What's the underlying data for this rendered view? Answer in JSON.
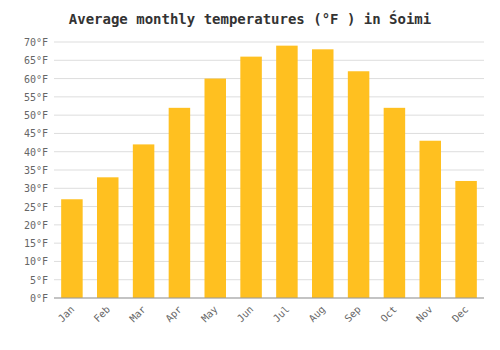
{
  "chart_data": {
    "type": "bar",
    "title": "Average monthly temperatures (°F ) in Śoimi",
    "categories": [
      "Jan",
      "Feb",
      "Mar",
      "Apr",
      "May",
      "Jun",
      "Jul",
      "Aug",
      "Sep",
      "Oct",
      "Nov",
      "Dec"
    ],
    "values": [
      27,
      33,
      42,
      52,
      60,
      66,
      69,
      68,
      62,
      52,
      43,
      32
    ],
    "color": "#FFC020",
    "ylim": [
      0,
      70
    ],
    "yticks": [
      {
        "value": 0,
        "label": "0°F"
      },
      {
        "value": 5,
        "label": "5°F"
      },
      {
        "value": 10,
        "label": "10°F"
      },
      {
        "value": 15,
        "label": "15°F"
      },
      {
        "value": 20,
        "label": "20°F"
      },
      {
        "value": 25,
        "label": "25°F"
      },
      {
        "value": 30,
        "label": "30°F"
      },
      {
        "value": 35,
        "label": "35°F"
      },
      {
        "value": 40,
        "label": "40°F"
      },
      {
        "value": 45,
        "label": "45°F"
      },
      {
        "value": 50,
        "label": "50°F"
      },
      {
        "value": 55,
        "label": "55°F"
      },
      {
        "value": 60,
        "label": "60°F"
      },
      {
        "value": 65,
        "label": "65°F"
      },
      {
        "value": 70,
        "label": "70°F"
      }
    ],
    "grid": true
  }
}
